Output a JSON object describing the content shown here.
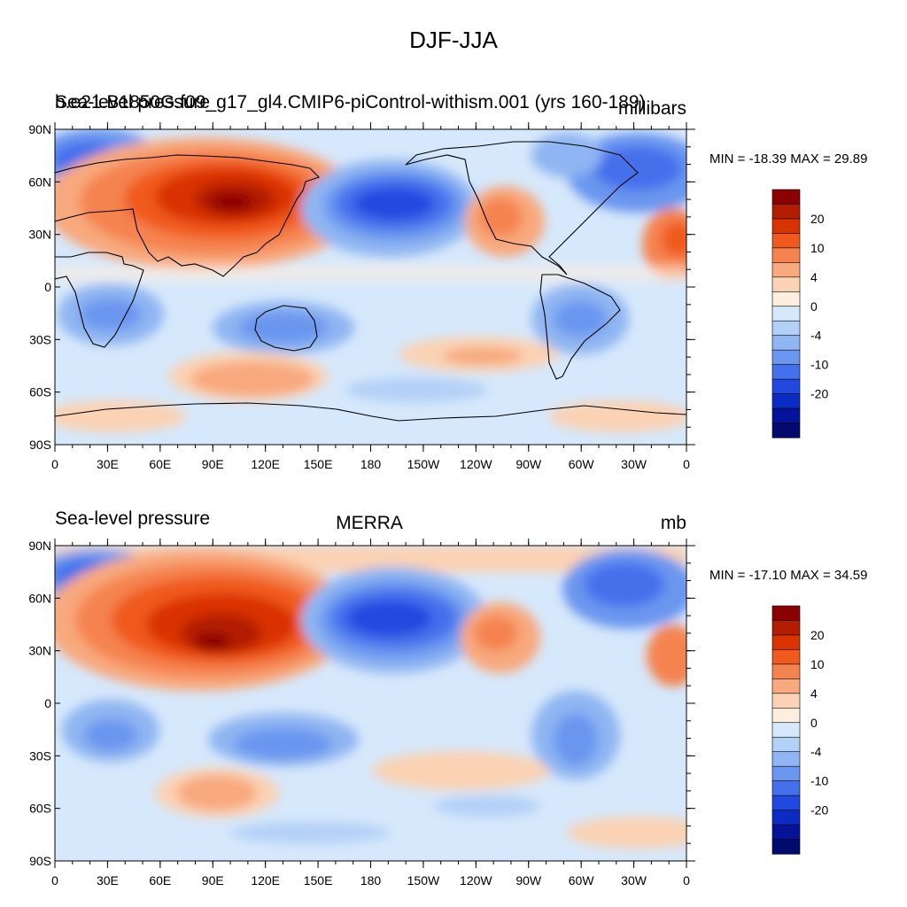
{
  "title": "DJF-JJA",
  "panels": [
    {
      "left_title": "Sea-level pressure",
      "left_title_overlap": "b.e21.B1850G.f09_g17_gl4.CMIP6-piControl-withism.001 (yrs 160-189)",
      "center_title": "",
      "units": "millibars",
      "stats": "MIN = -18.39 MAX =  29.89"
    },
    {
      "left_title": "Sea-level pressure",
      "center_title": "MERRA",
      "units": "mb",
      "stats": "MIN = -17.10 MAX =  34.59"
    }
  ],
  "axes": {
    "lat_labels": [
      "90N",
      "60N",
      "30N",
      "0",
      "30S",
      "60S",
      "90S"
    ],
    "lon_labels": [
      "0",
      "30E",
      "60E",
      "90E",
      "120E",
      "150E",
      "180",
      "150W",
      "120W",
      "90W",
      "60W",
      "30W",
      "0"
    ]
  },
  "colorbar": {
    "labels": [
      "20",
      "10",
      "4",
      "0",
      "-4",
      "-10",
      "-20"
    ],
    "colors": [
      "#8b0000",
      "#b31d00",
      "#d93300",
      "#f05a1e",
      "#f5834f",
      "#f8a97d",
      "#fbd2b3",
      "#fdeedf",
      "#d6e8fb",
      "#b3d0f7",
      "#8fb5f2",
      "#6b96ef",
      "#4570ec",
      "#2149e0",
      "#0a2bc4",
      "#04139a",
      "#010b6e"
    ]
  },
  "legend_colors": {
    "land_outline": "#000000",
    "background": "#ffffff"
  }
}
